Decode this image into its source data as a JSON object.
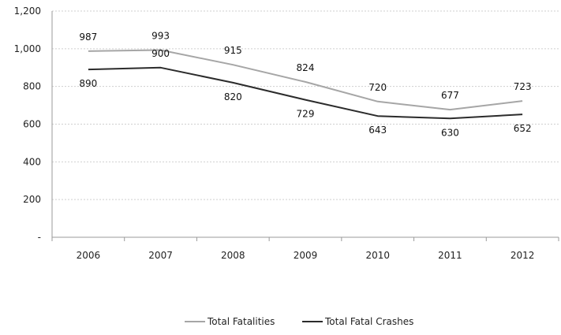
{
  "chart_data": {
    "type": "line",
    "categories": [
      "2006",
      "2007",
      "2008",
      "2009",
      "2010",
      "2011",
      "2012"
    ],
    "series": [
      {
        "name": "Total Fatalities",
        "values": [
          987,
          993,
          915,
          824,
          720,
          677,
          723
        ],
        "color": "#a6a6a6"
      },
      {
        "name": "Total Fatal Crashes",
        "values": [
          890,
          900,
          820,
          729,
          643,
          630,
          652
        ],
        "color": "#2b2b2b"
      }
    ],
    "y_ticks": [
      "-",
      "200",
      "400",
      "600",
      "800",
      "1,000",
      "1,200"
    ],
    "ylim": [
      0,
      1200
    ],
    "grid": true,
    "legend_position": "bottom"
  }
}
